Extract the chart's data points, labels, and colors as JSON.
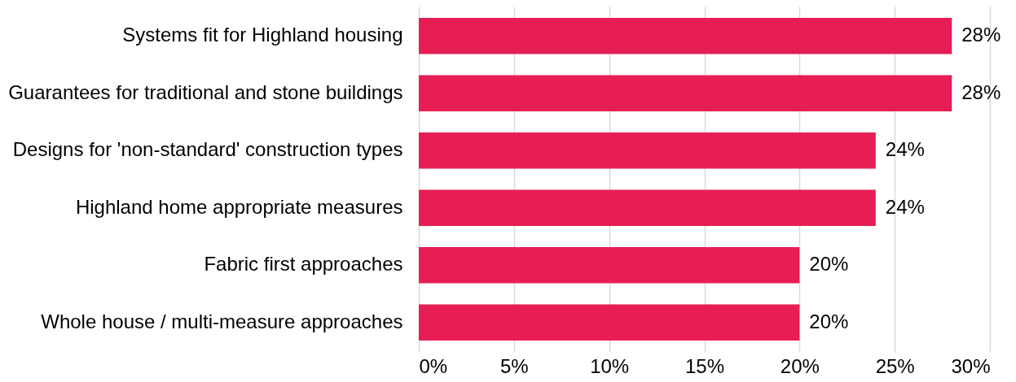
{
  "chart_data": {
    "type": "bar",
    "orientation": "horizontal",
    "categories": [
      "Systems fit for Highland housing",
      "Guarantees for traditional and stone buildings",
      "Designs for 'non-standard' construction types",
      "Highland home appropriate measures",
      "Fabric first approaches",
      "Whole house / multi-measure approaches"
    ],
    "values": [
      28,
      28,
      24,
      24,
      20,
      20
    ],
    "value_labels": [
      "28%",
      "28%",
      "24%",
      "24%",
      "20%",
      "20%"
    ],
    "color": "#e61e55",
    "xlim": [
      0,
      30
    ],
    "xticks": [
      {
        "value": 0,
        "label": "0%"
      },
      {
        "value": 5,
        "label": "5%"
      },
      {
        "value": 10,
        "label": "10%"
      },
      {
        "value": 15,
        "label": "15%"
      },
      {
        "value": 20,
        "label": "20%"
      },
      {
        "value": 25,
        "label": "25%"
      },
      {
        "value": 30,
        "label": "30%"
      }
    ],
    "grid": "x"
  }
}
